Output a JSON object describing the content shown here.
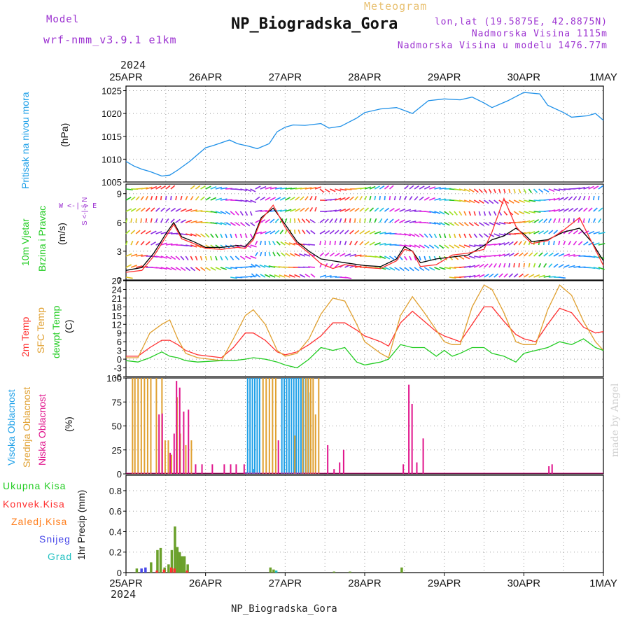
{
  "header": {
    "model_label": "Model",
    "model_name": "wrf-nmm_v3.9.1 e1km",
    "product": "Meteogram",
    "station": "NP_Biogradska_Gora",
    "coords": "lon,lat (19.5875E, 42.8875N)",
    "altitude": "Nadmorska Visina 1115m",
    "model_altitude": "Nadmorska Visina u modelu 1476.77m",
    "credit": "made by Angel"
  },
  "time_axis": {
    "year": "2024",
    "ticks": [
      "25APR",
      "26APR",
      "27APR",
      "28APR",
      "29APR",
      "30APR",
      "1MAY"
    ]
  },
  "footer": {
    "station": "NP_Biogradska_Gora"
  },
  "panel_labels": {
    "pressure": {
      "name": "Pritisak na nivou mora",
      "unit": "(hPa)"
    },
    "wind": {
      "name1": "10m Vjetar",
      "name2": "Brzina i Pravac",
      "unit": "(m/s)",
      "compass_we": "W <-|-> E",
      "compass_ns": "S <-|-> N"
    },
    "temp": {
      "t2m": "2m Temp",
      "sfc": "SFC Temp",
      "dew": "dewpt Temp",
      "unit": "(C)"
    },
    "cloud": {
      "high": "Visoka Oblacnost",
      "mid": "Srednja Oblacnost",
      "low": "Niska Oblacnost",
      "unit": "(%)"
    },
    "precip": {
      "total": "Ukupna Kisa",
      "conv": "Konvek.Kisa",
      "frozen": "Zaledj.Kisa",
      "snow": "Snijeg",
      "graupel": "Grad",
      "unit": "1hr Precip (mm)"
    }
  },
  "chart_data": [
    {
      "type": "line",
      "name": "pressure",
      "ylabel": "(hPa)",
      "ylim": [
        1005,
        1026
      ],
      "yticks": [
        1005,
        1010,
        1015,
        1020,
        1025
      ],
      "x_days": [
        0,
        0.1,
        0.2,
        0.3,
        0.45,
        0.55,
        0.65,
        0.8,
        1.0,
        1.1,
        1.2,
        1.3,
        1.4,
        1.55,
        1.65,
        1.8,
        1.9,
        2.0,
        2.1,
        2.25,
        2.45,
        2.55,
        2.7,
        2.9,
        3.0,
        3.2,
        3.4,
        3.6,
        3.8,
        4.0,
        4.2,
        4.35,
        4.5,
        4.6,
        4.8,
        5.0,
        5.2,
        5.3,
        5.5,
        5.6,
        5.8,
        5.9,
        6.0
      ],
      "series": [
        {
          "color": "#1e90e8",
          "values": [
            1009.5,
            1008.5,
            1007.8,
            1007.3,
            1006.3,
            1006.5,
            1007.6,
            1009.5,
            1012.5,
            1013.0,
            1013.6,
            1014.2,
            1013.4,
            1012.8,
            1012.3,
            1013.4,
            1016.0,
            1017.0,
            1017.5,
            1017.4,
            1017.8,
            1016.8,
            1017.2,
            1019.0,
            1020.2,
            1021.0,
            1021.3,
            1020.0,
            1022.8,
            1023.2,
            1023.0,
            1023.6,
            1022.3,
            1021.3,
            1022.8,
            1024.6,
            1024.3,
            1021.8,
            1020.2,
            1019.2,
            1019.5,
            1020.0,
            1018.5
          ]
        }
      ]
    },
    {
      "type": "line",
      "name": "wind_speed",
      "ylabel": "(m/s)",
      "ylim": [
        0,
        10
      ],
      "yticks": [
        0,
        3,
        6,
        9
      ],
      "x_days": [
        0,
        0.2,
        0.35,
        0.5,
        0.6,
        0.7,
        0.85,
        1.0,
        1.2,
        1.4,
        1.5,
        1.6,
        1.7,
        1.85,
        2.0,
        2.15,
        2.3,
        2.45,
        2.6,
        2.75,
        3.0,
        3.2,
        3.4,
        3.5,
        3.6,
        3.7,
        3.9,
        4.1,
        4.3,
        4.5,
        4.6,
        4.75,
        4.9,
        5.0,
        5.1,
        5.3,
        5.5,
        5.7,
        5.85,
        6.0
      ],
      "series": [
        {
          "color": "#000000",
          "values": [
            1.0,
            1.3,
            2.8,
            4.8,
            6.0,
            4.5,
            4.0,
            3.4,
            3.4,
            3.6,
            3.5,
            4.4,
            6.5,
            7.5,
            5.8,
            4.0,
            3.0,
            2.2,
            2.0,
            1.8,
            1.5,
            1.4,
            2.2,
            3.5,
            3.0,
            1.8,
            2.2,
            2.4,
            2.6,
            3.6,
            4.2,
            4.6,
            5.4,
            4.8,
            4.0,
            4.2,
            5.0,
            5.4,
            4.0,
            2.0
          ]
        },
        {
          "color": "#ff3030",
          "values": [
            0.8,
            1.0,
            2.5,
            4.5,
            5.8,
            4.3,
            3.8,
            3.3,
            3.2,
            3.4,
            3.3,
            4.2,
            6.3,
            7.8,
            5.5,
            3.8,
            2.8,
            1.7,
            1.2,
            1.6,
            1.3,
            1.2,
            2.0,
            3.2,
            3.0,
            1.4,
            1.6,
            2.6,
            2.8,
            3.2,
            5.0,
            8.5,
            5.6,
            4.6,
            3.8,
            4.1,
            5.2,
            6.5,
            4.0,
            1.5
          ]
        }
      ]
    },
    {
      "type": "line",
      "name": "temperature",
      "ylabel": "(C)",
      "ylim": [
        -6,
        27
      ],
      "yticks": [
        -6,
        -3,
        0,
        3,
        6,
        9,
        12,
        15,
        18,
        21,
        24,
        27
      ],
      "x_days": [
        0,
        0.15,
        0.3,
        0.45,
        0.55,
        0.65,
        0.75,
        0.9,
        1.2,
        1.35,
        1.5,
        1.6,
        1.75,
        1.9,
        2.0,
        2.15,
        2.3,
        2.45,
        2.6,
        2.75,
        2.9,
        3.0,
        3.2,
        3.3,
        3.45,
        3.6,
        3.75,
        3.9,
        4.0,
        4.1,
        4.2,
        4.35,
        4.5,
        4.6,
        4.75,
        4.9,
        5.0,
        5.15,
        5.3,
        5.45,
        5.6,
        5.75,
        5.9,
        6.0
      ],
      "series": [
        {
          "name": "2m Temp",
          "color": "#ff3030",
          "values": [
            1,
            1,
            4,
            6.5,
            6.5,
            5,
            3,
            1.5,
            0.5,
            4,
            9,
            9,
            6.5,
            2.5,
            1.5,
            2.5,
            5,
            8,
            12.5,
            12.5,
            10,
            8,
            6,
            4.5,
            12.5,
            16.5,
            13,
            9.5,
            8,
            7,
            6,
            12,
            18,
            18,
            13,
            8.5,
            7,
            6,
            12,
            17.5,
            16,
            11,
            9,
            9.5
          ]
        },
        {
          "name": "SFC Temp",
          "color": "#e0a030",
          "values": [
            0.5,
            0.5,
            9,
            12,
            13.5,
            7,
            2,
            0.5,
            -0.5,
            7,
            15,
            17,
            12,
            3,
            1,
            2,
            7,
            15.5,
            21,
            20,
            12,
            6,
            2,
            0.5,
            15,
            21.5,
            16,
            10,
            6,
            5,
            5,
            18,
            25.5,
            24,
            16,
            6,
            5,
            5,
            17,
            25.5,
            22,
            13,
            6,
            3
          ]
        },
        {
          "name": "dewpt Temp",
          "color": "#22cc22",
          "values": [
            -0.5,
            -1,
            0.5,
            2.5,
            1,
            0.5,
            -0.5,
            -1,
            -0.5,
            -0.5,
            0,
            0.5,
            0,
            -1,
            -2,
            -3,
            0,
            4,
            3,
            4,
            -1,
            -2,
            -1,
            0,
            5,
            4,
            4,
            1,
            3,
            1,
            2,
            4,
            4,
            2,
            1,
            -1,
            2,
            3,
            4,
            6,
            5,
            7,
            4,
            3
          ]
        }
      ]
    },
    {
      "type": "bar",
      "name": "cloud_cover",
      "ylabel": "(%)",
      "ylim": [
        0,
        100
      ],
      "yticks": [
        0,
        25,
        50,
        75,
        100
      ],
      "series": [
        {
          "name": "Visoka Oblacnost",
          "color": "#1ea0e8",
          "bars": [
            [
              1.5,
              2
            ],
            [
              1.55,
              3
            ],
            [
              1.6,
              5
            ],
            [
              1.52,
              100
            ],
            [
              1.55,
              100
            ],
            [
              1.58,
              100
            ],
            [
              1.61,
              100
            ],
            [
              1.64,
              100
            ],
            [
              1.67,
              100
            ],
            [
              1.95,
              100
            ],
            [
              1.98,
              100
            ],
            [
              2.01,
              100
            ],
            [
              2.04,
              100
            ],
            [
              2.07,
              100
            ],
            [
              2.1,
              100
            ],
            [
              2.13,
              100
            ],
            [
              2.16,
              100
            ],
            [
              2.19,
              100
            ],
            [
              2.22,
              100
            ],
            [
              2.25,
              100
            ],
            [
              2.28,
              100
            ],
            [
              2.31,
              85
            ]
          ]
        },
        {
          "name": "Srednja Oblacnost",
          "color": "#e0a030",
          "bars": [
            [
              0.06,
              100
            ],
            [
              0.09,
              100
            ],
            [
              0.13,
              100
            ],
            [
              0.17,
              100
            ],
            [
              0.21,
              100
            ],
            [
              0.25,
              100
            ],
            [
              0.29,
              100
            ],
            [
              0.36,
              100
            ],
            [
              0.43,
              100
            ],
            [
              0.47,
              35
            ],
            [
              0.51,
              35
            ],
            [
              0.55,
              20
            ],
            [
              0.62,
              80
            ],
            [
              0.66,
              42
            ],
            [
              0.73,
              30
            ],
            [
              0.8,
              35
            ],
            [
              1.7,
              100
            ],
            [
              1.74,
              100
            ],
            [
              1.78,
              100
            ],
            [
              1.82,
              100
            ],
            [
              1.86,
              100
            ],
            [
              2.1,
              40
            ],
            [
              2.2,
              100
            ],
            [
              2.24,
              100
            ],
            [
              2.27,
              100
            ],
            [
              2.3,
              100
            ],
            [
              2.33,
              100
            ],
            [
              2.36,
              62
            ],
            [
              2.4,
              100
            ]
          ]
        },
        {
          "name": "Niska Oblacnost",
          "color": "#e0148c",
          "bars": [
            [
              0.38,
              62
            ],
            [
              0.42,
              63
            ],
            [
              0.52,
              22
            ],
            [
              0.57,
              42
            ],
            [
              0.6,
              97
            ],
            [
              0.64,
              90
            ],
            [
              0.69,
              65
            ],
            [
              0.75,
              67
            ],
            [
              0.84,
              10
            ],
            [
              0.92,
              10
            ],
            [
              1.05,
              10
            ],
            [
              1.2,
              10
            ],
            [
              1.28,
              10
            ],
            [
              1.35,
              10
            ],
            [
              1.45,
              10
            ],
            [
              1.88,
              35
            ],
            [
              2.5,
              30
            ],
            [
              2.58,
              5
            ],
            [
              2.65,
              12
            ],
            [
              2.7,
              25
            ],
            [
              3.45,
              10
            ],
            [
              3.52,
              93
            ],
            [
              3.56,
              73
            ],
            [
              3.7,
              37
            ],
            [
              3.62,
              12
            ],
            [
              5.28,
              8
            ],
            [
              5.32,
              10
            ]
          ]
        }
      ]
    },
    {
      "type": "bar",
      "name": "precipitation",
      "ylabel": "1hr Precip (mm)",
      "ylim": [
        0,
        0.95
      ],
      "yticks": [
        0,
        0.2,
        0.4,
        0.6,
        0.8
      ],
      "series": [
        {
          "name": "Ukupna Kisa",
          "color": "#6aa02a",
          "bars": [
            [
              0.12,
              0.04
            ],
            [
              0.3,
              0.1
            ],
            [
              0.38,
              0.22
            ],
            [
              0.42,
              0.24
            ],
            [
              0.47,
              0.05
            ],
            [
              0.52,
              0.08
            ],
            [
              0.56,
              0.22
            ],
            [
              0.6,
              0.45
            ],
            [
              0.63,
              0.25
            ],
            [
              0.66,
              0.2
            ],
            [
              0.69,
              0.16
            ],
            [
              0.72,
              0.16
            ],
            [
              0.76,
              0.08
            ],
            [
              1.8,
              0.05
            ],
            [
              1.84,
              0.03
            ],
            [
              2.6,
              0.01
            ],
            [
              2.8,
              0.01
            ],
            [
              3.45,
              0.05
            ]
          ]
        },
        {
          "name": "Konvek.Kisa",
          "color": "#ff3030",
          "bars": [
            [
              0.36,
              0.02
            ],
            [
              0.45,
              0.03
            ],
            [
              0.54,
              0.05
            ],
            [
              0.58,
              0.04
            ],
            [
              0.74,
              0.02
            ]
          ]
        },
        {
          "name": "Zaledj.Kisa",
          "color": "#ff8020",
          "bars": []
        },
        {
          "name": "Snijeg",
          "color": "#4848e8",
          "bars": [
            [
              0.14,
              0.04
            ],
            [
              0.19,
              0.05
            ]
          ]
        },
        {
          "name": "Grad",
          "color": "#20c0c0",
          "bars": [
            [
              1.82,
              0.02
            ]
          ]
        }
      ]
    }
  ]
}
